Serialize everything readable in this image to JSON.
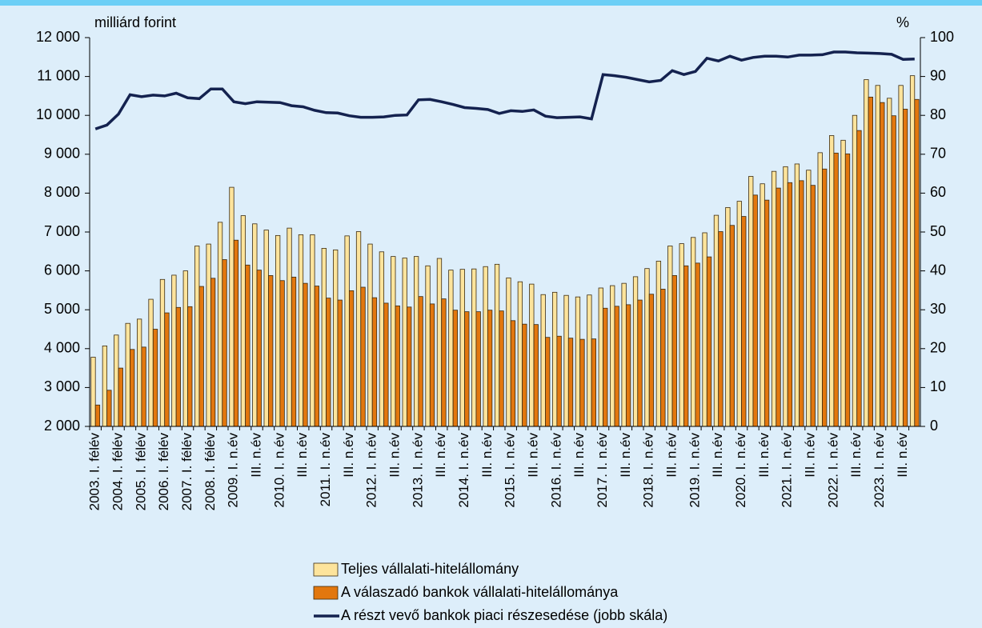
{
  "chart_data": {
    "type": "bar-line",
    "y_label": "milliárd forint",
    "y2_label": "%",
    "categories": [
      "2003. I. félév",
      null,
      "2004. I. félév",
      null,
      "2005. I. félév",
      null,
      "2006. I. félév",
      null,
      "2007. I. félév",
      null,
      "2008. I. félév",
      null,
      "2009. I. n.év",
      null,
      "III. n.év",
      null,
      "2010. I. n.év",
      null,
      "III. n.év",
      null,
      "2011. I. n.év",
      null,
      "III. n.év",
      null,
      "2012. I. n.év",
      null,
      "III. n.év",
      null,
      "2013. I. n.év",
      null,
      "III. n.év",
      null,
      "2014. I. n.év",
      null,
      "III. n.év",
      null,
      "2015. I. n.év",
      null,
      "III. n.év",
      null,
      "2016. I. n.év",
      null,
      "III. n.év",
      null,
      "2017. I. n.év",
      null,
      "III. n.év",
      null,
      "2018. I. n.év",
      null,
      "III. n.év",
      null,
      "2019. I. n.év",
      null,
      "III. n.év",
      null,
      "2020. I. n.év",
      null,
      "III. n.év",
      null,
      "2021. I. n.év",
      null,
      "III. n.év",
      null,
      "2022. I. n.év",
      null,
      "III. n.év",
      null,
      "2023. I. n.év",
      null,
      "III. n.év",
      null
    ],
    "series": [
      {
        "name": "Teljes vállalati-hitelállomány",
        "kind": "bar",
        "color": "#fde49c",
        "values": [
          3780,
          4070,
          4350,
          4650,
          4760,
          5270,
          5780,
          5890,
          6000,
          6640,
          6690,
          7250,
          8150,
          7420,
          7210,
          7050,
          6910,
          7100,
          6930,
          6930,
          6580,
          6540,
          6900,
          7010,
          6690,
          6490,
          6370,
          6330,
          6370,
          6130,
          6320,
          6020,
          6040,
          6050,
          6110,
          6170,
          5820,
          5720,
          5660,
          5390,
          5450,
          5370,
          5330,
          5380,
          5560,
          5620,
          5680,
          5850,
          6060,
          6250,
          6640,
          6700,
          6860,
          6980,
          7430,
          7630,
          7790,
          8430,
          8240,
          8560,
          8680,
          8750,
          8590,
          9040,
          9480,
          9360,
          10000,
          10920,
          10770,
          10440,
          10770,
          11020
        ]
      },
      {
        "name": "A válaszadó bankok vállalati-hitelállománya",
        "kind": "bar",
        "color": "#e2770e",
        "values": [
          2550,
          2930,
          3500,
          3980,
          4040,
          4500,
          4920,
          5060,
          5080,
          5600,
          5810,
          6290,
          6790,
          6150,
          6020,
          5880,
          5750,
          5840,
          5680,
          5610,
          5300,
          5250,
          5490,
          5580,
          5310,
          5170,
          5100,
          5070,
          5340,
          5150,
          5280,
          4990,
          4950,
          4950,
          4990,
          4970,
          4720,
          4630,
          4620,
          4290,
          4320,
          4270,
          4240,
          4250,
          5040,
          5090,
          5130,
          5250,
          5400,
          5530,
          5880,
          6130,
          6200,
          6360,
          7010,
          7170,
          7400,
          7950,
          7820,
          8130,
          8270,
          8320,
          8200,
          8620,
          9030,
          9010,
          9610,
          10470,
          10330,
          9990,
          10160,
          10410
        ]
      },
      {
        "name": "A részt vevő bankok piaci részesedése (jobb skála)",
        "kind": "line",
        "axis": "y2",
        "color": "#14224f",
        "values": [
          76.5,
          77.5,
          80.3,
          85.3,
          84.8,
          85.2,
          85.0,
          85.7,
          84.5,
          84.3,
          86.8,
          86.8,
          83.5,
          83.0,
          83.5,
          83.4,
          83.3,
          82.5,
          82.2,
          81.3,
          80.7,
          80.6,
          79.9,
          79.5,
          79.5,
          79.6,
          80.0,
          80.1,
          84.0,
          84.1,
          83.5,
          82.8,
          82.0,
          81.8,
          81.5,
          80.5,
          81.2,
          81.0,
          81.4,
          79.8,
          79.4,
          79.5,
          79.6,
          79.1,
          90.5,
          90.2,
          89.8,
          89.2,
          88.6,
          89.0,
          91.5,
          90.5,
          91.3,
          94.7,
          94.0,
          95.2,
          94.2,
          94.9,
          95.2,
          95.2,
          95.0,
          95.5,
          95.5,
          95.6,
          96.3,
          96.3,
          96.1,
          96.0,
          95.9,
          95.7,
          94.4,
          94.5
        ]
      }
    ],
    "ylim": [
      2000,
      12000
    ],
    "yticks": [
      {
        "value": 2000,
        "label": "2 000"
      },
      {
        "value": 3000,
        "label": "3 000"
      },
      {
        "value": 4000,
        "label": "4 000"
      },
      {
        "value": 5000,
        "label": "5 000"
      },
      {
        "value": 6000,
        "label": "6 000"
      },
      {
        "value": 7000,
        "label": "7 000"
      },
      {
        "value": 8000,
        "label": "8 000"
      },
      {
        "value": 9000,
        "label": "9 000"
      },
      {
        "value": 10000,
        "label": "10 000"
      },
      {
        "value": 11000,
        "label": "11 000"
      },
      {
        "value": 12000,
        "label": "12 000"
      }
    ],
    "y2lim": [
      0,
      100
    ],
    "y2ticks": [
      0,
      10,
      20,
      30,
      40,
      50,
      60,
      70,
      80,
      90,
      100
    ]
  }
}
